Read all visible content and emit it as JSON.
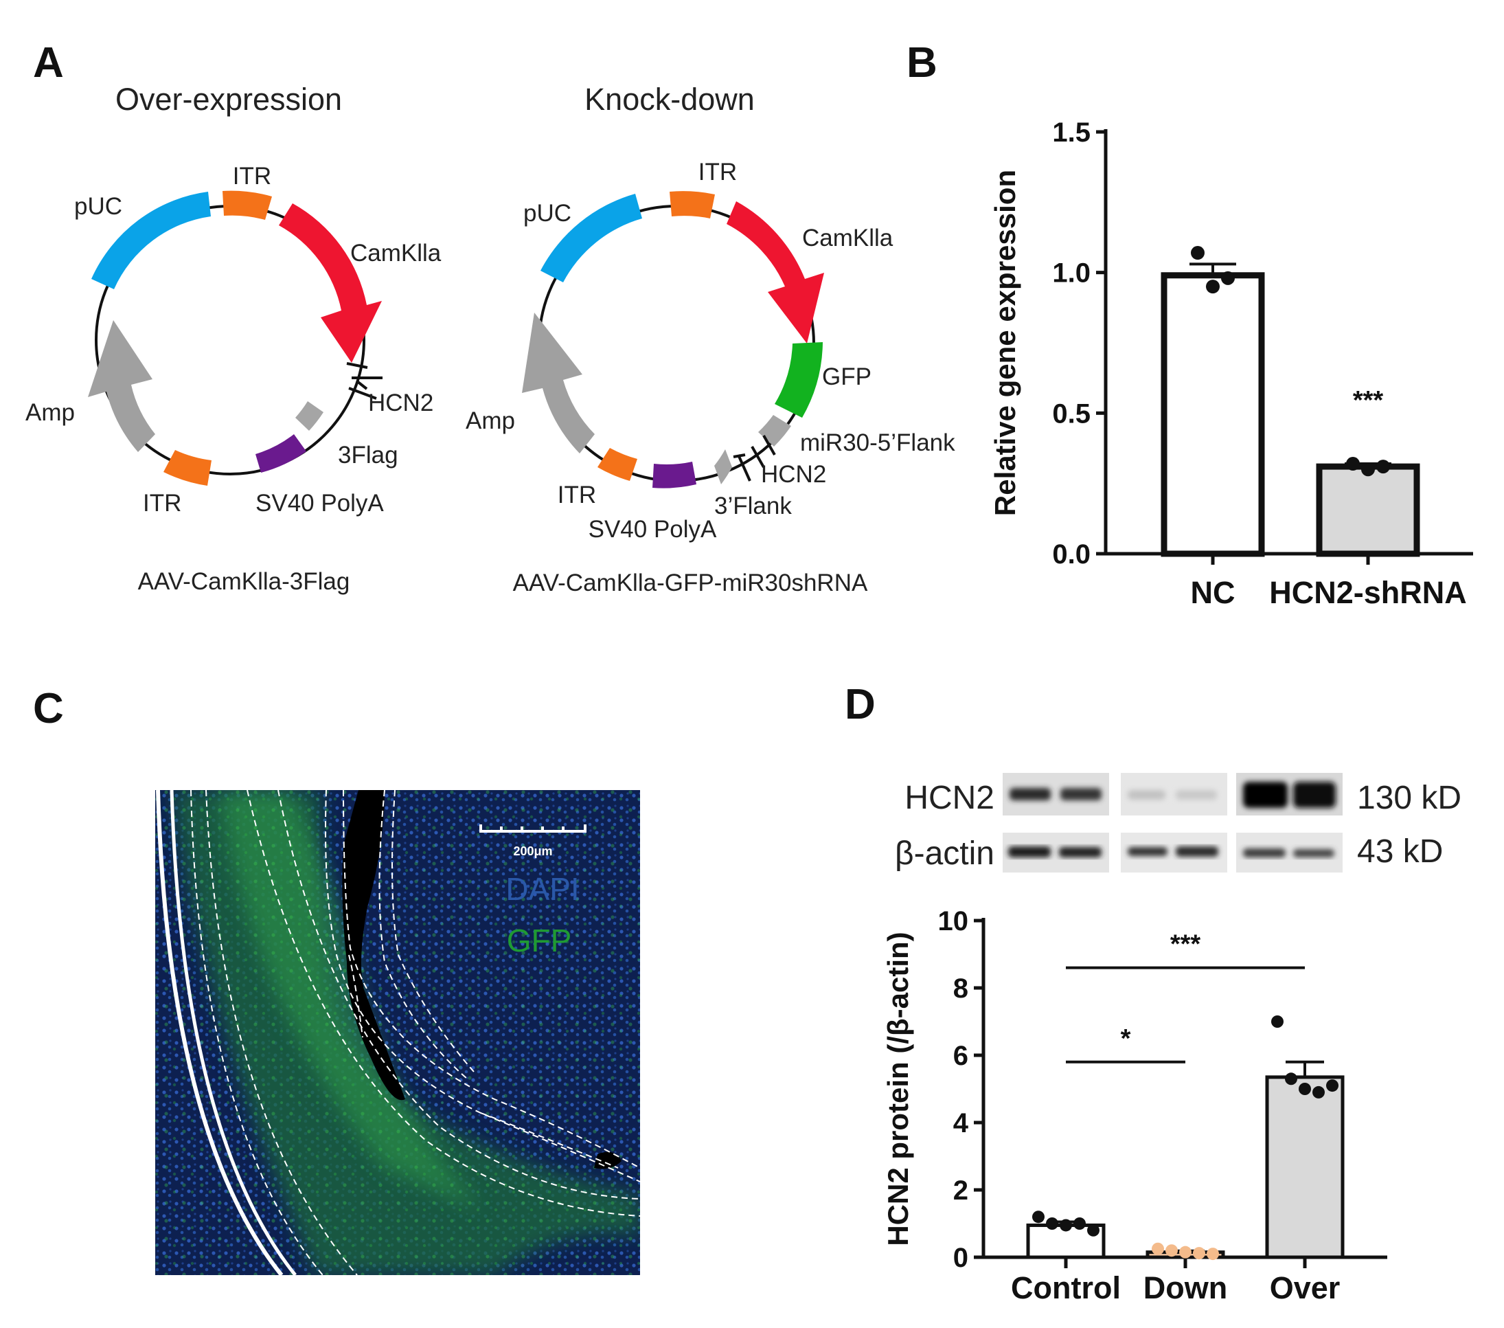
{
  "panels": {
    "a": "A",
    "b": "B",
    "c": "C",
    "d": "D"
  },
  "panel_a": {
    "over": {
      "title": "Over-expression",
      "name": "AAV-CamKlla-3Flag",
      "labels": {
        "itr_top": "ITR",
        "puc": "pUC",
        "camk": "CamKlla",
        "hcn2": "HCN2",
        "flag": "3Flag",
        "polya": "SV40 PolyA",
        "itr_bottom": "ITR",
        "amp": "Amp"
      }
    },
    "knock": {
      "title": "Knock-down",
      "name": "AAV-CamKlla-GFP-miR30shRNA",
      "labels": {
        "itr_top": "ITR",
        "puc": "pUC",
        "camk": "CamKlla",
        "gfp": "GFP",
        "flank5": "miR30-5’Flank",
        "hcn2": "HCN2",
        "flank3": "3’Flank",
        "polya": "SV40 PolyA",
        "itr_bottom": "ITR",
        "amp": "Amp"
      }
    },
    "colors": {
      "puc": "#0aa3e8",
      "itr": "#f47219",
      "camk": "#ee1530",
      "gfp": "#12b21f",
      "flag": "#a5a5a5",
      "polya": "#6a1a8e",
      "amp": "#a0a0a0"
    }
  },
  "panel_c": {
    "scale_label": "200μm",
    "legend": [
      {
        "text": "DAPI",
        "color": "#2a58a8"
      },
      {
        "text": "GFP",
        "color": "#1f9a33"
      }
    ]
  },
  "panel_d_blot": {
    "rows": [
      {
        "label": "HCN2",
        "size": "130 kD"
      },
      {
        "label": "β-actin",
        "size": "43 kD"
      }
    ]
  },
  "chart_data": [
    {
      "id": "B",
      "type": "bar",
      "categories": [
        "NC",
        "HCN2-shRNA"
      ],
      "values": [
        0.99,
        0.31
      ],
      "sem": [
        0.04,
        0.01
      ],
      "points": [
        [
          1.07,
          0.95,
          0.98
        ],
        [
          0.32,
          0.3,
          0.31
        ]
      ],
      "fills": [
        "#ffffff",
        "#d9d9d9"
      ],
      "ylabel": "Relative gene expression",
      "ylim": [
        0,
        1.5
      ],
      "yticks": [
        0,
        0.5,
        1.0,
        1.5
      ],
      "yticklabels": [
        "0.0",
        "0.5",
        "1.0",
        "1.5"
      ],
      "annotations": [
        {
          "category": "HCN2-shRNA",
          "text": "***"
        }
      ]
    },
    {
      "id": "D",
      "type": "bar",
      "categories": [
        "Control",
        "Down",
        "Over"
      ],
      "values": [
        0.95,
        0.15,
        5.35
      ],
      "sem": [
        0.1,
        0.04,
        0.45
      ],
      "points": [
        [
          1.2,
          1.0,
          0.95,
          1.0,
          0.8
        ],
        [
          0.25,
          0.2,
          0.15,
          0.12,
          0.1
        ],
        [
          7.0,
          5.3,
          5.0,
          4.9,
          5.1
        ]
      ],
      "fills": [
        "#ffffff",
        "#f7c9a3",
        "#d9d9d9"
      ],
      "point_colors": [
        "#111111",
        "#f4bb8b",
        "#111111"
      ],
      "ylabel": "HCN2 protein  (/β-actin)",
      "ylim": [
        0,
        10
      ],
      "yticks": [
        0,
        2,
        4,
        6,
        8,
        10
      ],
      "yticklabels": [
        "0",
        "2",
        "4",
        "6",
        "8",
        "10"
      ],
      "significance": [
        {
          "from": "Control",
          "to": "Over",
          "y": 8.6,
          "text": "***"
        },
        {
          "from": "Control",
          "to": "Down",
          "y": 5.8,
          "text": "*"
        }
      ]
    }
  ]
}
